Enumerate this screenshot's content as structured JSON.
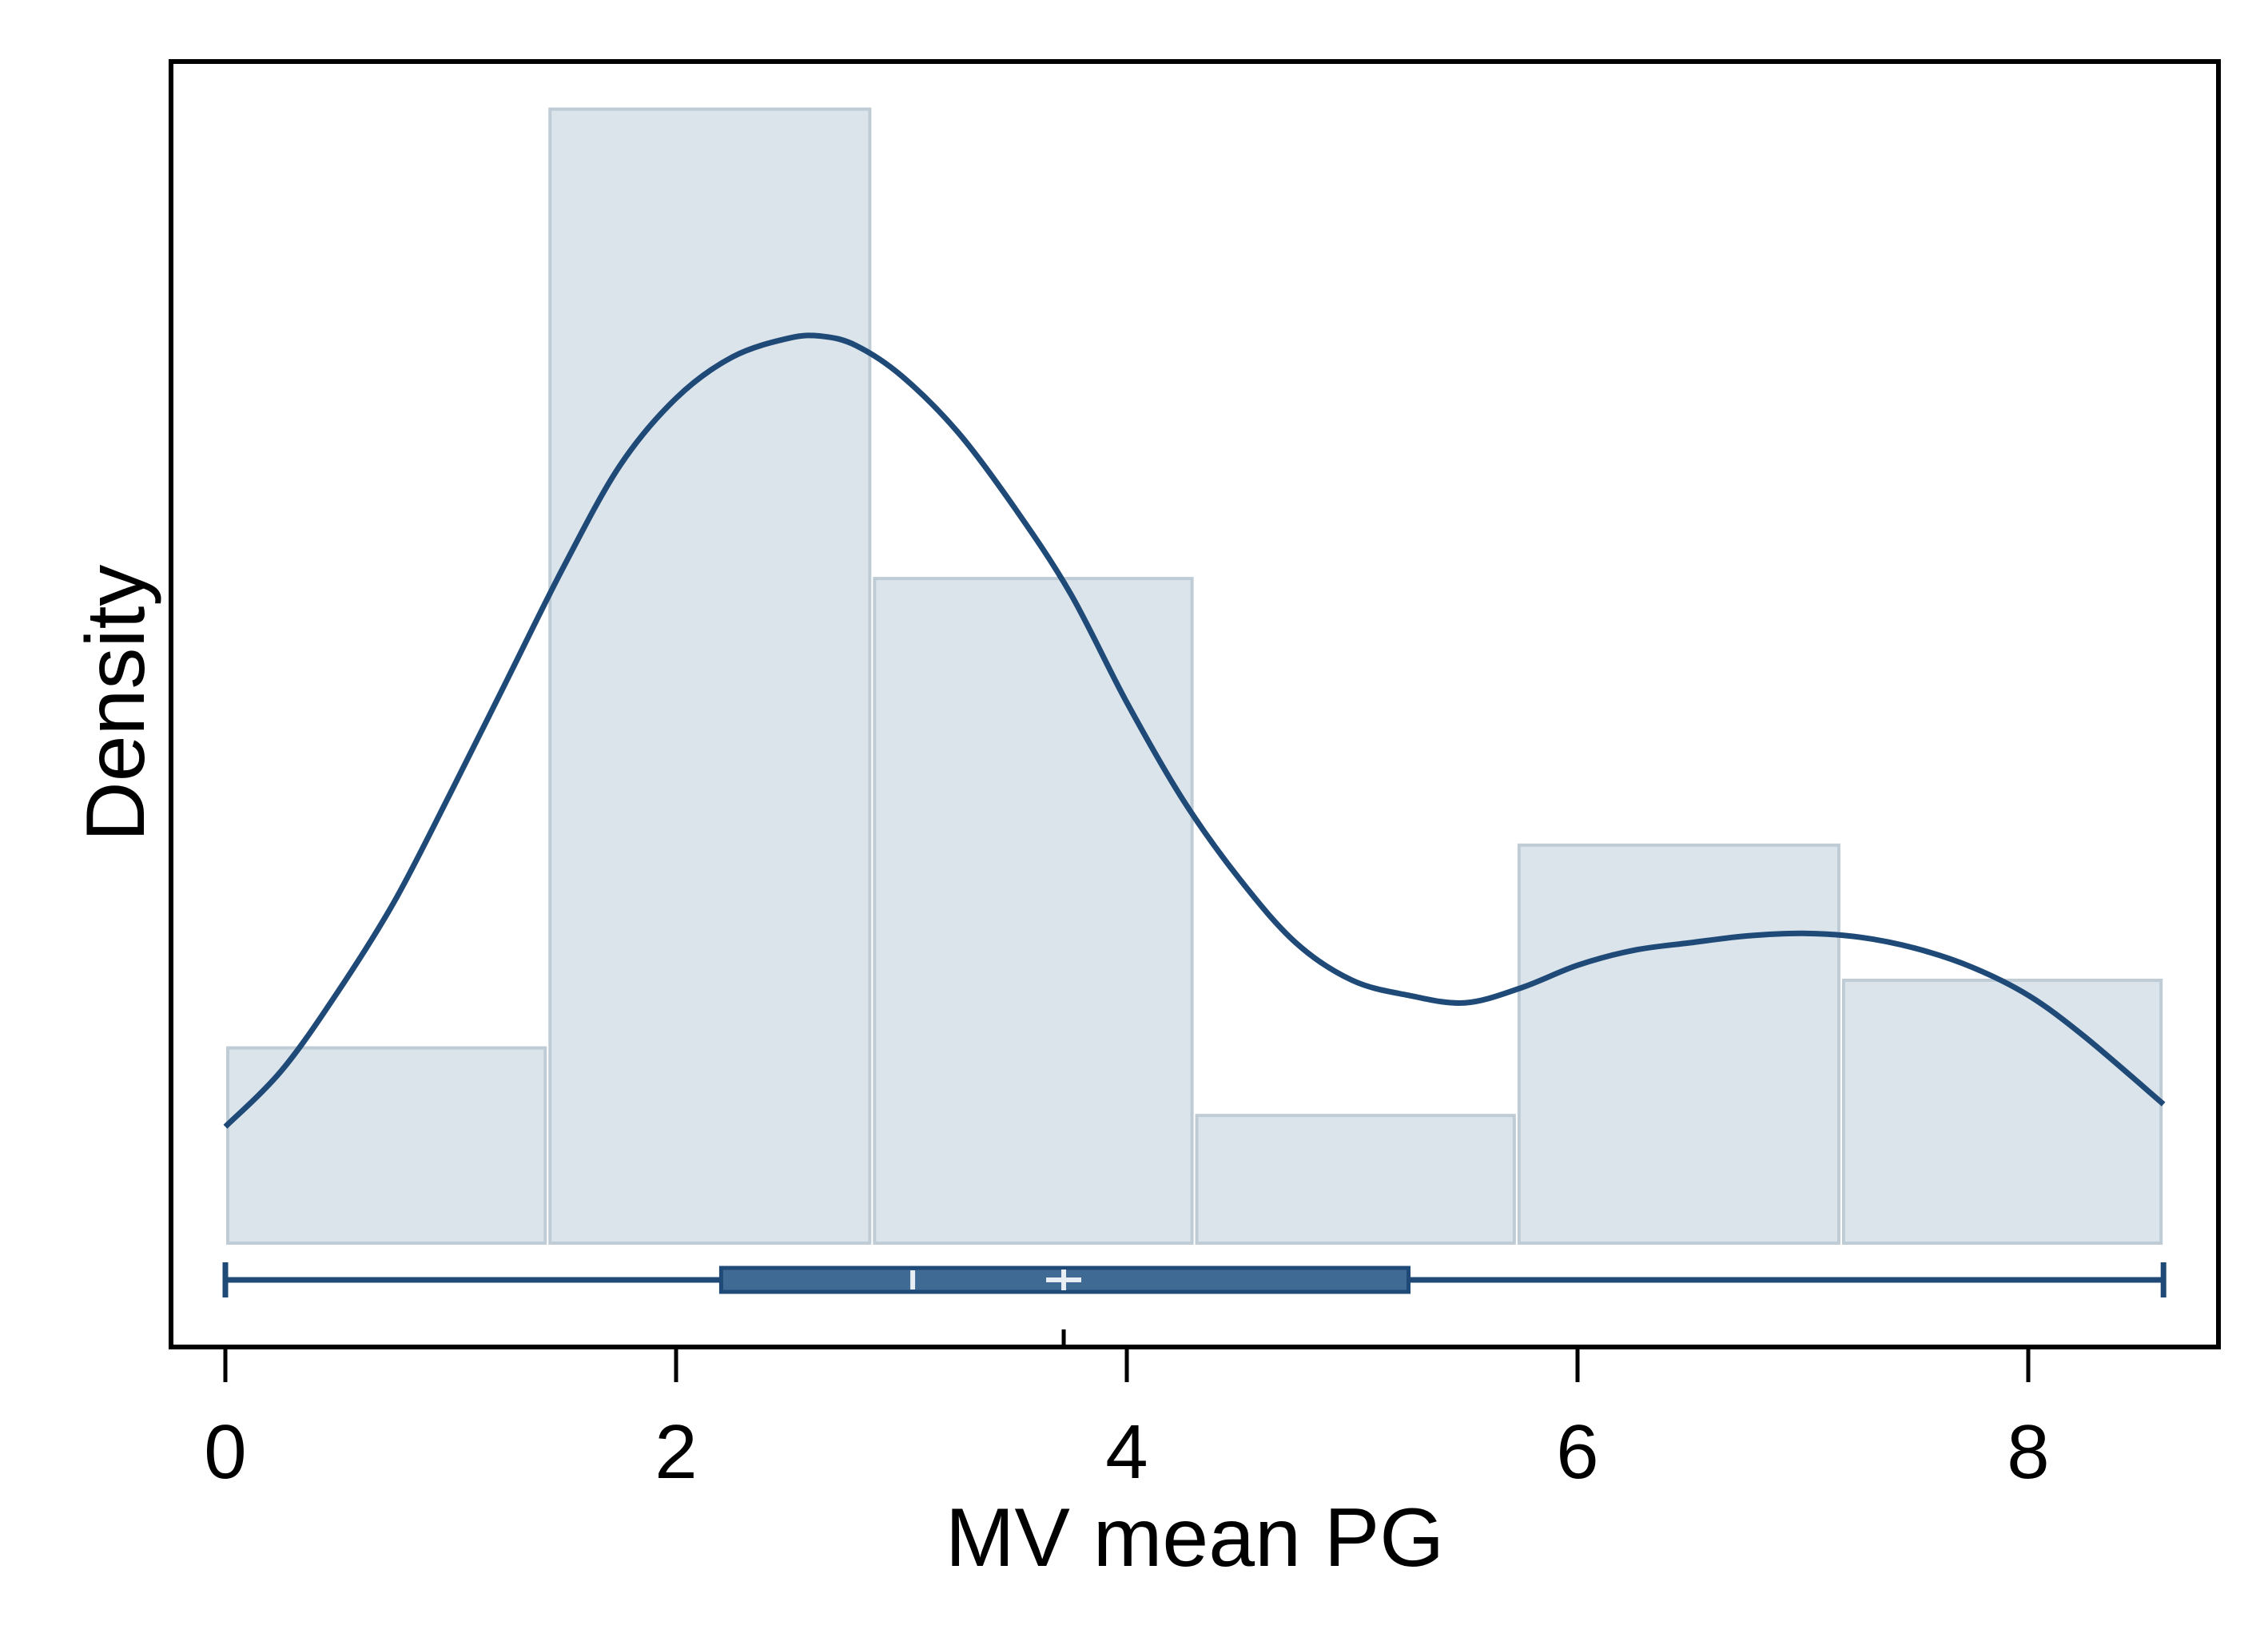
{
  "chart_data": {
    "type": "histogram",
    "title": "",
    "xlabel": "MV mean PG",
    "ylabel": "Density",
    "xlim": [
      -0.25,
      8.8
    ],
    "x_ticks": [
      0,
      2,
      4,
      6,
      8
    ],
    "x_tick_labels": [
      "0",
      "2",
      "4",
      "6",
      "8"
    ],
    "y_ticks_shown": false,
    "grid": false,
    "legend": "none",
    "histogram": {
      "bin_edges": [
        0,
        1.43,
        2.87,
        4.3,
        5.73,
        7.17,
        8.6
      ],
      "densities": [
        0.052,
        0.302,
        0.177,
        0.034,
        0.106,
        0.07
      ]
    },
    "kde": {
      "x": [
        0,
        0.25,
        0.5,
        0.75,
        1.0,
        1.25,
        1.5,
        1.75,
        2.0,
        2.25,
        2.5,
        2.65,
        2.8,
        3.0,
        3.25,
        3.5,
        3.75,
        4.0,
        4.25,
        4.5,
        4.75,
        5.0,
        5.25,
        5.5,
        5.75,
        6.0,
        6.25,
        6.5,
        6.75,
        7.0,
        7.25,
        7.5,
        7.75,
        8.0,
        8.25,
        8.6
      ],
      "y": [
        0.031,
        0.046,
        0.067,
        0.091,
        0.12,
        0.15,
        0.18,
        0.207,
        0.225,
        0.236,
        0.241,
        0.2415,
        0.239,
        0.231,
        0.216,
        0.196,
        0.173,
        0.144,
        0.118,
        0.097,
        0.08,
        0.07,
        0.066,
        0.064,
        0.068,
        0.074,
        0.078,
        0.08,
        0.0818,
        0.0825,
        0.0815,
        0.0785,
        0.0735,
        0.066,
        0.055,
        0.037
      ]
    },
    "boxplot": {
      "min": 0,
      "q1": 2.2,
      "median": 3.05,
      "mean": 3.72,
      "q3": 5.25,
      "max": 8.6
    },
    "colors": {
      "bar_fill": "#dce4eb",
      "bar_edge": "#bfccd6",
      "line": "#1f4a77",
      "box_fill": "#3f6a94",
      "frame": "#000000"
    }
  }
}
